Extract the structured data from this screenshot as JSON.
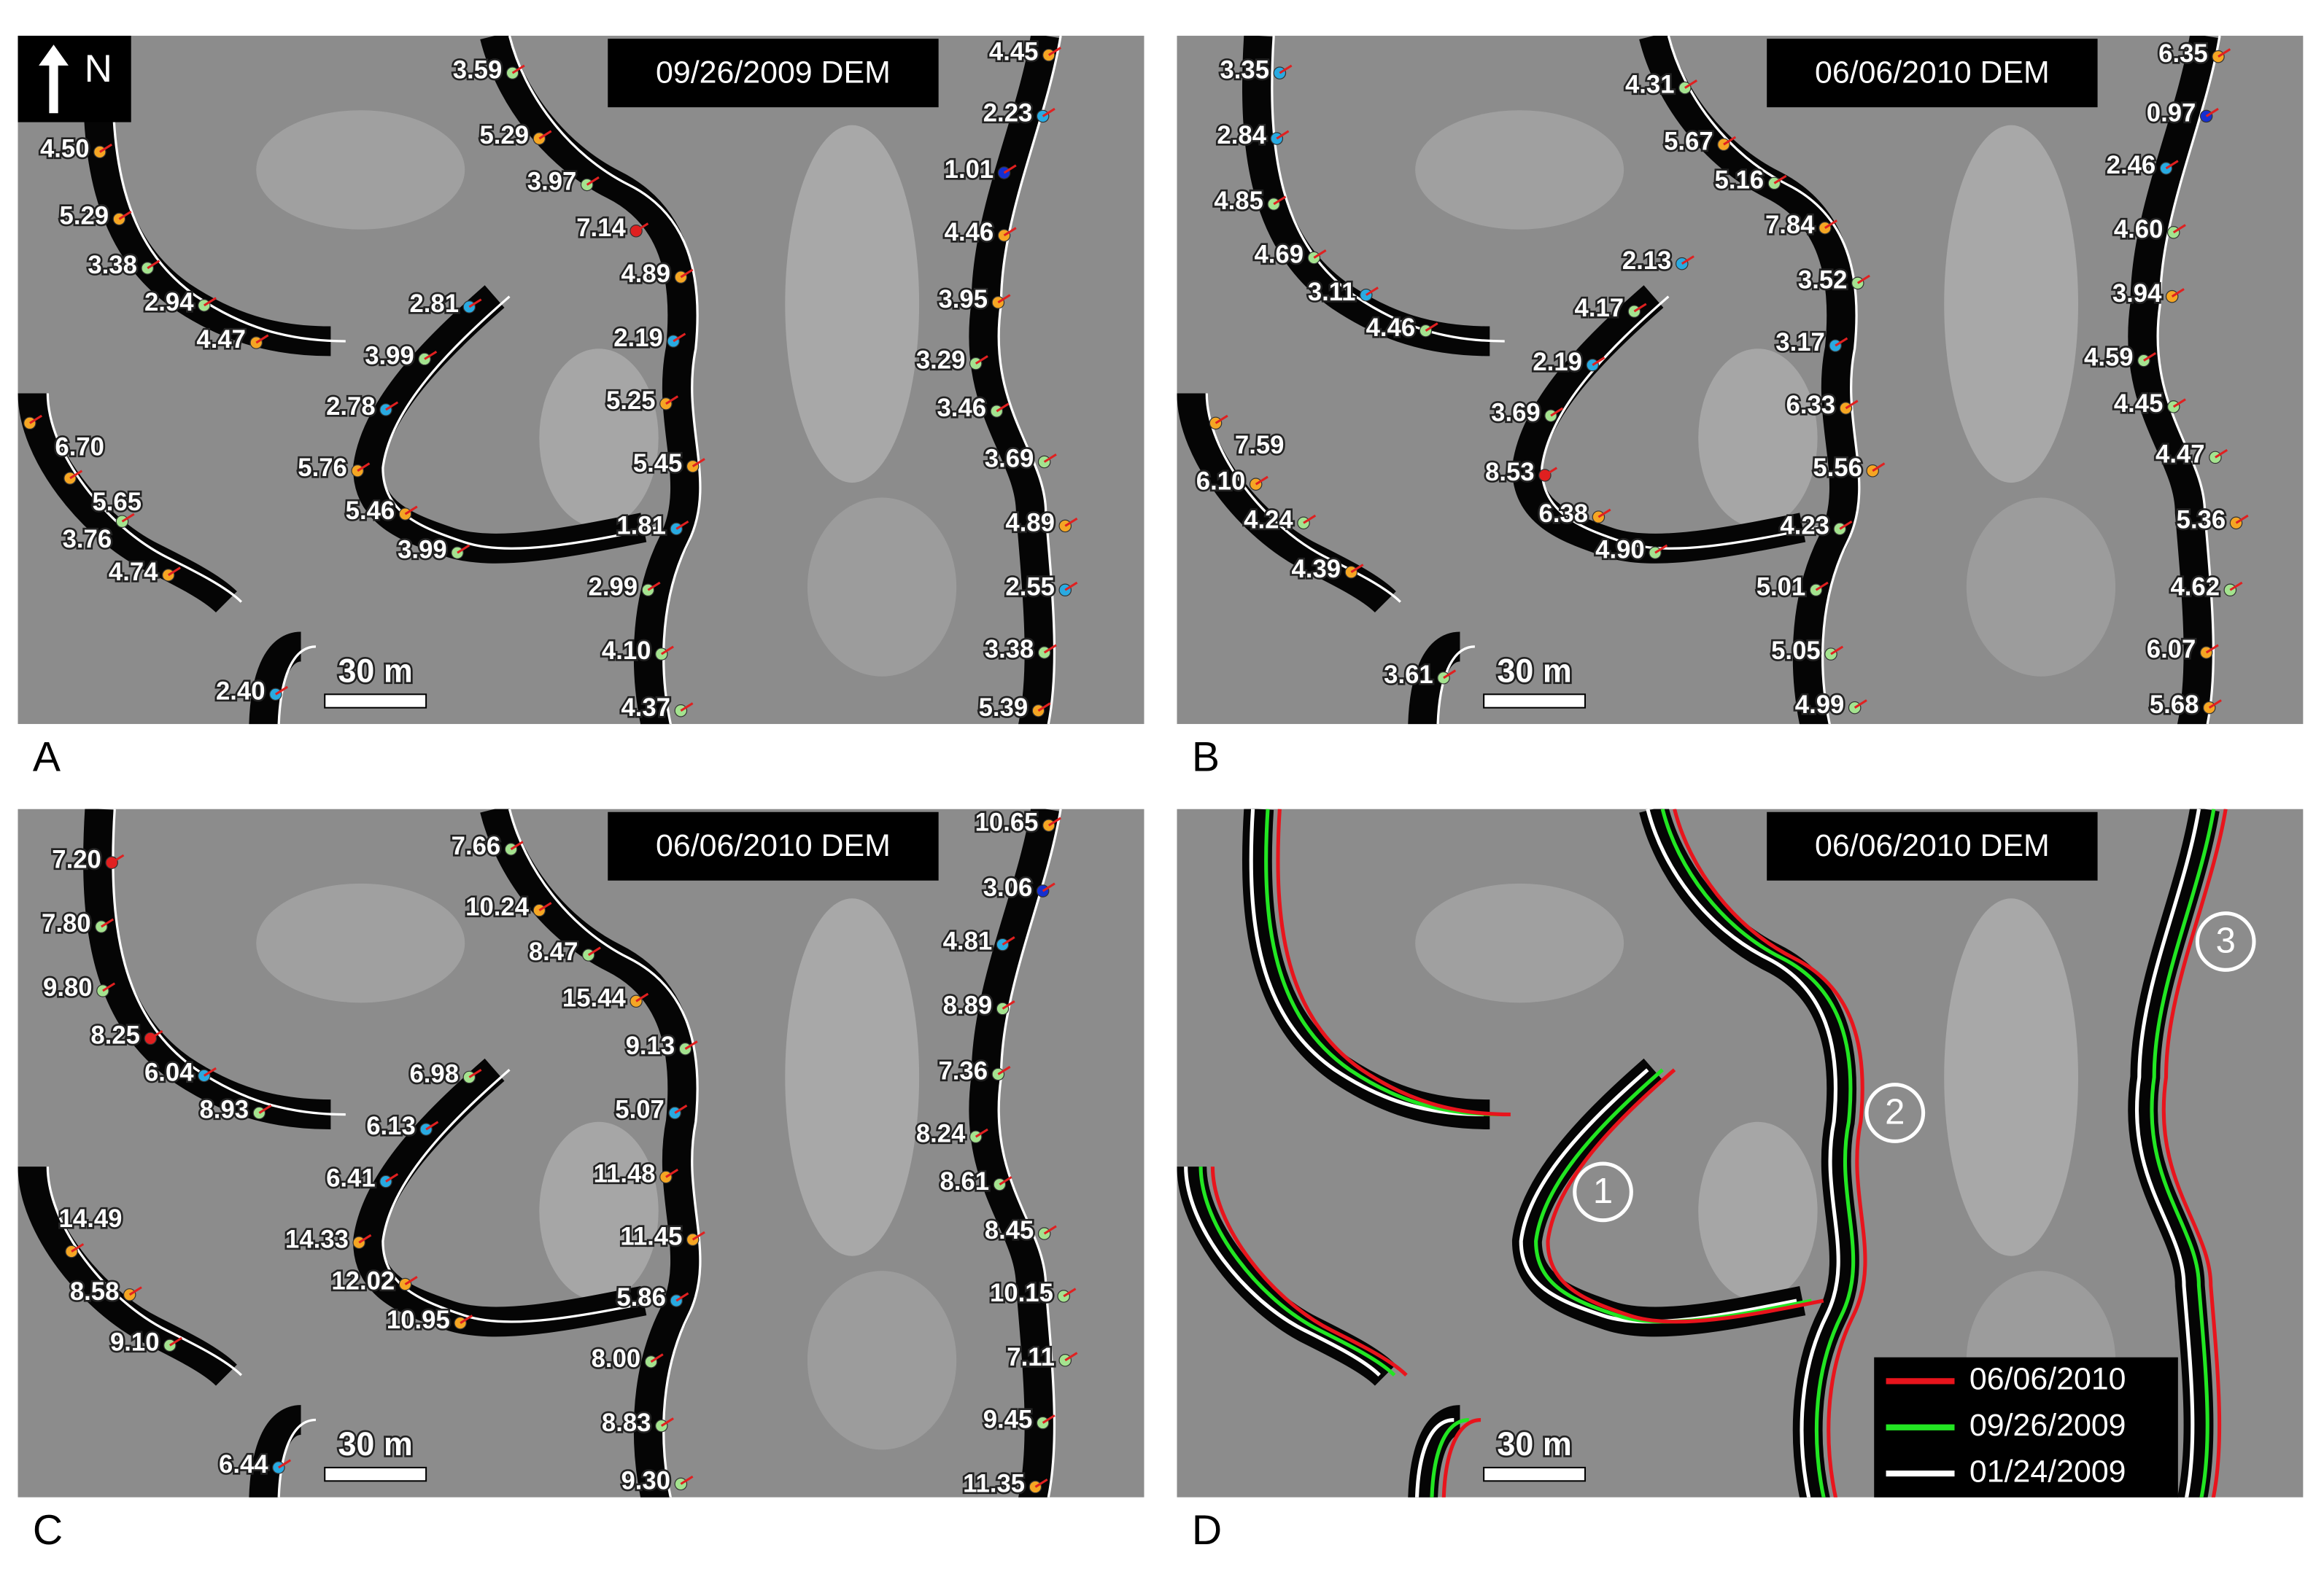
{
  "north_label": "N",
  "panels": [
    {
      "letter": "A",
      "dem_label": "09/26/2009 DEM",
      "scale_bar": "30 m",
      "labels": [
        "3.59",
        "5.29",
        "4.50",
        "3.97",
        "7.14",
        "5.29",
        "3.38",
        "4.89",
        "2.94",
        "2.81",
        "4.47",
        "2.19",
        "3.99",
        "2.78",
        "5.25",
        "6.70",
        "5.45",
        "5.76",
        "5.65",
        "5.46",
        "1.81",
        "3.76",
        "3.99",
        "4.74",
        "2.99",
        "4.10",
        "2.40",
        "4.37",
        "4.45",
        "2.23",
        "1.01",
        "4.46",
        "3.95",
        "3.29",
        "3.46",
        "3.69",
        "4.89",
        "2.55",
        "3.38",
        "5.39"
      ]
    },
    {
      "letter": "B",
      "dem_label": "06/06/2010 DEM",
      "scale_bar": "30 m",
      "labels": [
        "3.35",
        "4.31",
        "6.35",
        "0.97",
        "2.84",
        "5.67",
        "2.46",
        "5.16",
        "4.85",
        "7.84",
        "4.60",
        "4.69",
        "2.13",
        "3.52",
        "3.11",
        "3.94",
        "4.17",
        "4.46",
        "3.17",
        "2.19",
        "4.59",
        "3.69",
        "6.33",
        "4.45",
        "7.59",
        "4.47",
        "8.53",
        "6.10",
        "5.56",
        "6.38",
        "4.24",
        "5.36",
        "4.23",
        "4.90",
        "4.39",
        "5.01",
        "4.62",
        "5.05",
        "6.07",
        "3.61",
        "4.99",
        "5.68"
      ]
    },
    {
      "letter": "C",
      "dem_label": "06/06/2010 DEM",
      "scale_bar": "30 m",
      "labels": [
        "7.20",
        "7.66",
        "10.65",
        "7.80",
        "10.24",
        "3.06",
        "8.47",
        "4.81",
        "9.80",
        "15.44",
        "8.89",
        "8.25",
        "6.04",
        "6.98",
        "9.13",
        "7.36",
        "8.93",
        "6.13",
        "5.07",
        "8.24",
        "11.48",
        "6.41",
        "8.61",
        "14.49",
        "8.45",
        "14.33",
        "11.45",
        "12.02",
        "8.58",
        "5.86",
        "10.15",
        "10.95",
        "9.10",
        "8.00",
        "7.11",
        "8.83",
        "9.45",
        "6.44",
        "9.30",
        "11.35"
      ]
    },
    {
      "letter": "D",
      "dem_label": "06/06/2010 DEM",
      "scale_bar": "30 m",
      "labels": []
    }
  ],
  "legend": [
    {
      "name": "06/06/2010",
      "color": "#e8141c"
    },
    {
      "name": "09/26/2009",
      "color": "#22e622"
    },
    {
      "name": "01/24/2009",
      "color": "#ffffff"
    }
  ],
  "channel_markers": [
    "1",
    "2",
    "3"
  ]
}
